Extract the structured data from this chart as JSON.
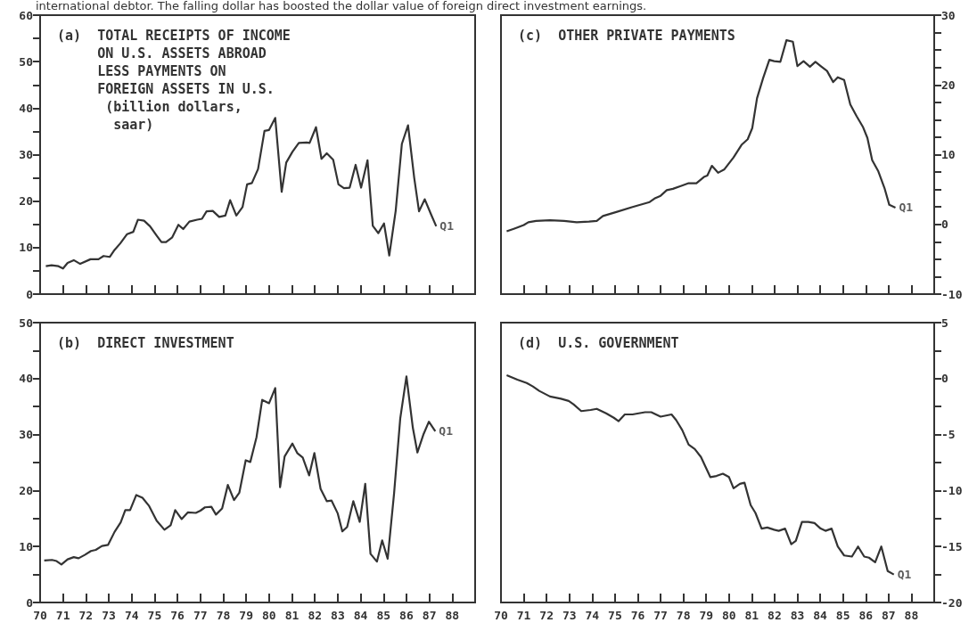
{
  "chart_data": [
    {
      "type": "line",
      "title": "(a)  TOTAL RECEIPTS OF INCOME\n     ON U.S. ASSETS ABROAD\n     LESS PAYMENTS ON\n     FOREIGN ASSETS IN U.S.\n      (billion dollars,\n       saar)",
      "tick_labels": "y",
      "xlim": [
        1970,
        1989
      ],
      "xticks": [
        {
          "value": 1970,
          "label": null
        },
        {
          "value": 1971,
          "label": null
        },
        {
          "value": 1972,
          "label": null
        },
        {
          "value": 1973,
          "label": null
        },
        {
          "value": 1974,
          "label": null
        },
        {
          "value": 1975,
          "label": null
        },
        {
          "value": 1976,
          "label": null
        },
        {
          "value": 1977,
          "label": null
        },
        {
          "value": 1978,
          "label": null
        },
        {
          "value": 1979,
          "label": null
        },
        {
          "value": 1980,
          "label": null
        },
        {
          "value": 1981,
          "label": null
        },
        {
          "value": 1982,
          "label": null
        },
        {
          "value": 1983,
          "label": null
        },
        {
          "value": 1984,
          "label": null
        },
        {
          "value": 1985,
          "label": null
        },
        {
          "value": 1986,
          "label": null
        },
        {
          "value": 1987,
          "label": null
        },
        {
          "value": 1988,
          "label": null
        },
        {
          "value": 1989,
          "label": null
        }
      ],
      "ylim": [
        0,
        60
      ],
      "yticks": [
        0,
        {
          "value": 5,
          "label": null
        },
        10,
        {
          "value": 15,
          "label": null
        },
        20,
        {
          "value": 25,
          "label": null
        },
        30,
        {
          "value": 35,
          "label": null
        },
        40,
        {
          "value": 45,
          "label": null
        },
        50,
        {
          "value": 55,
          "label": null
        },
        60
      ],
      "series": [
        {
          "color": "#333333",
          "x": [
            1970.25,
            1970.5,
            1970.8,
            1971.0,
            1971.2,
            1971.47,
            1971.75,
            1972.2,
            1972.55,
            1972.77,
            1973.04,
            1973.25,
            1973.5,
            1973.8,
            1974.07,
            1974.27,
            1974.54,
            1974.8,
            1975.09,
            1975.3,
            1975.5,
            1975.77,
            1976.04,
            1976.25,
            1976.52,
            1976.86,
            1977.07,
            1977.27,
            1977.54,
            1977.82,
            1978.09,
            1978.3,
            1978.57,
            1978.84,
            1979.04,
            1979.25,
            1979.52,
            1979.8,
            1980.0,
            1980.27,
            1980.55,
            1980.75,
            1981.02,
            1981.3,
            1981.64,
            1981.77,
            1982.05,
            1982.29,
            1982.52,
            1982.8,
            1983.03,
            1983.27,
            1983.52,
            1983.78,
            1984.02,
            1984.3,
            1984.53,
            1984.77,
            1985.02,
            1985.25,
            1985.53,
            1985.8,
            1986.07,
            1986.34,
            1986.55,
            1986.8,
            1987.07,
            1987.3
          ],
          "values": [
            6.0,
            6.2,
            6.0,
            5.5,
            6.7,
            7.3,
            6.5,
            7.5,
            7.5,
            8.2,
            8.0,
            9.5,
            10.9,
            12.9,
            13.4,
            16.0,
            15.8,
            14.6,
            12.6,
            11.2,
            11.2,
            12.2,
            14.9,
            14.0,
            15.6,
            16.0,
            16.2,
            17.8,
            17.9,
            16.6,
            16.9,
            20.2,
            16.9,
            18.7,
            23.6,
            23.9,
            26.9,
            35.1,
            35.3,
            37.9,
            22.0,
            28.3,
            30.6,
            32.5,
            32.6,
            32.5,
            35.9,
            29.1,
            30.3,
            28.9,
            23.6,
            22.8,
            22.9,
            27.8,
            22.9,
            28.8,
            14.7,
            13.1,
            15.2,
            8.3,
            17.9,
            32.3,
            36.3,
            25.0,
            17.8,
            20.4,
            17.2,
            14.6
          ]
        }
      ],
      "annotations": [
        "international debtor. The falling dollar has boosted the dollar value of foreign direct investment earnings.",
        {
          "text": "Q1",
          "x": 1987.3,
          "y": 14.6
        }
      ]
    },
    {
      "type": "line",
      "title": "(c)  OTHER PRIVATE PAYMENTS",
      "tick_labels": "y",
      "xlim": [
        1970,
        1989
      ],
      "xticks": [
        {
          "value": 1970,
          "label": null
        },
        {
          "value": 1971,
          "label": null
        },
        {
          "value": 1972,
          "label": null
        },
        {
          "value": 1973,
          "label": null
        },
        {
          "value": 1974,
          "label": null
        },
        {
          "value": 1975,
          "label": null
        },
        {
          "value": 1976,
          "label": null
        },
        {
          "value": 1977,
          "label": null
        },
        {
          "value": 1978,
          "label": null
        },
        {
          "value": 1979,
          "label": null
        },
        {
          "value": 1980,
          "label": null
        },
        {
          "value": 1981,
          "label": null
        },
        {
          "value": 1982,
          "label": null
        },
        {
          "value": 1983,
          "label": null
        },
        {
          "value": 1984,
          "label": null
        },
        {
          "value": 1985,
          "label": null
        },
        {
          "value": 1986,
          "label": null
        },
        {
          "value": 1987,
          "label": null
        },
        {
          "value": 1988,
          "label": null
        },
        {
          "value": 1989,
          "label": null
        }
      ],
      "ylim": [
        -10,
        30
      ],
      "yticks": [
        -10,
        {
          "value": -7.5,
          "label": null
        },
        {
          "value": -5,
          "label": null
        },
        {
          "value": -2.5,
          "label": null
        },
        0,
        {
          "value": 2.5,
          "label": null
        },
        {
          "value": 5,
          "label": null
        },
        {
          "value": 7.5,
          "label": null
        },
        10,
        {
          "value": 12.5,
          "label": null
        },
        {
          "value": 15,
          "label": null
        },
        {
          "value": 17.5,
          "label": null
        },
        20,
        {
          "value": 22.5,
          "label": null
        },
        {
          "value": 25,
          "label": null
        },
        {
          "value": 27.5,
          "label": null
        },
        30
      ],
      "series": [
        {
          "color": "#333333",
          "x": [
            1970.25,
            1970.59,
            1971.0,
            1971.2,
            1971.54,
            1972.15,
            1972.77,
            1973.32,
            1973.86,
            1974.2,
            1974.47,
            1975.09,
            1975.77,
            1976.52,
            1976.73,
            1977.0,
            1977.27,
            1977.54,
            1978.23,
            1978.57,
            1978.9,
            1979.05,
            1979.25,
            1979.52,
            1979.8,
            1980.2,
            1980.55,
            1980.82,
            1981.02,
            1981.23,
            1981.5,
            1981.77,
            1981.98,
            1982.25,
            1982.52,
            1982.8,
            1983.0,
            1983.27,
            1983.55,
            1983.79,
            1984.02,
            1984.3,
            1984.57,
            1984.77,
            1985.05,
            1985.32,
            1985.6,
            1985.87,
            1986.07,
            1986.28,
            1986.55,
            1986.82,
            1987.03,
            1987.3
          ],
          "values": [
            -1.0,
            -0.6,
            -0.1,
            0.3,
            0.5,
            0.6,
            0.5,
            0.3,
            0.4,
            0.5,
            1.2,
            1.8,
            2.5,
            3.2,
            3.7,
            4.1,
            4.9,
            5.1,
            5.9,
            5.9,
            6.8,
            7.0,
            8.4,
            7.4,
            7.9,
            9.6,
            11.4,
            12.2,
            13.8,
            18.1,
            21.0,
            23.6,
            23.4,
            23.3,
            26.4,
            26.2,
            22.7,
            23.4,
            22.6,
            23.3,
            22.7,
            22.0,
            20.4,
            21.1,
            20.7,
            17.2,
            15.5,
            14.0,
            12.4,
            9.2,
            7.6,
            5.2,
            2.8,
            2.4
          ]
        }
      ],
      "annotations": [
        {
          "text": "Q1",
          "x": 1987.3,
          "y": 2.4
        }
      ]
    },
    {
      "type": "line",
      "title": "(b)  DIRECT INVESTMENT",
      "xlim": [
        1970,
        1989
      ],
      "xticks": [
        {
          "value": 1970,
          "label": "70"
        },
        {
          "value": 1971,
          "label": "71"
        },
        {
          "value": 1972,
          "label": "72"
        },
        {
          "value": 1973,
          "label": "73"
        },
        {
          "value": 1974,
          "label": "74"
        },
        {
          "value": 1975,
          "label": "75"
        },
        {
          "value": 1976,
          "label": "76"
        },
        {
          "value": 1977,
          "label": "77"
        },
        {
          "value": 1978,
          "label": "78"
        },
        {
          "value": 1979,
          "label": "79"
        },
        {
          "value": 1980,
          "label": "80"
        },
        {
          "value": 1981,
          "label": "81"
        },
        {
          "value": 1982,
          "label": "82"
        },
        {
          "value": 1983,
          "label": "83"
        },
        {
          "value": 1984,
          "label": "84"
        },
        {
          "value": 1985,
          "label": "85"
        },
        {
          "value": 1986,
          "label": "86"
        },
        {
          "value": 1987,
          "label": "87"
        },
        {
          "value": 1988,
          "label": "88"
        },
        {
          "value": 1989,
          "label": null
        }
      ],
      "ylim": [
        0,
        50
      ],
      "yticks": [
        0,
        {
          "value": 5,
          "label": null
        },
        10,
        {
          "value": 15,
          "label": null
        },
        20,
        {
          "value": 25,
          "label": null
        },
        30,
        {
          "value": 35,
          "label": null
        },
        40,
        {
          "value": 45,
          "label": null
        },
        50
      ],
      "series": [
        {
          "color": "#333333",
          "x": [
            1970.18,
            1970.52,
            1970.72,
            1970.93,
            1971.2,
            1971.47,
            1971.68,
            1971.95,
            1972.22,
            1972.43,
            1972.7,
            1972.97,
            1973.25,
            1973.52,
            1973.72,
            1973.93,
            1974.2,
            1974.47,
            1974.75,
            1975.09,
            1975.43,
            1975.7,
            1975.9,
            1976.18,
            1976.45,
            1976.8,
            1977.0,
            1977.2,
            1977.48,
            1977.68,
            1977.95,
            1978.2,
            1978.47,
            1978.7,
            1978.98,
            1979.18,
            1979.45,
            1979.7,
            1980.0,
            1980.27,
            1980.48,
            1980.68,
            1981.02,
            1981.23,
            1981.47,
            1981.75,
            1981.98,
            1982.25,
            1982.52,
            1982.73,
            1983.0,
            1983.2,
            1983.41,
            1983.68,
            1983.96,
            1984.2,
            1984.43,
            1984.71,
            1984.94,
            1985.18,
            1985.46,
            1985.73,
            1986.0,
            1986.28,
            1986.48,
            1986.75,
            1986.98,
            1987.26
          ],
          "values": [
            7.5,
            7.6,
            7.4,
            6.8,
            7.7,
            8.1,
            7.9,
            8.5,
            9.2,
            9.4,
            10.1,
            10.3,
            12.6,
            14.3,
            16.5,
            16.5,
            19.2,
            18.7,
            17.3,
            14.6,
            13.0,
            13.8,
            16.5,
            14.9,
            16.1,
            16.0,
            16.4,
            17.0,
            17.1,
            15.7,
            16.8,
            21.0,
            18.3,
            19.6,
            25.4,
            25.1,
            29.5,
            36.2,
            35.6,
            38.3,
            20.6,
            26.1,
            28.4,
            26.7,
            25.9,
            22.7,
            26.7,
            20.3,
            18.1,
            18.2,
            15.9,
            12.7,
            13.5,
            18.1,
            14.4,
            21.2,
            8.7,
            7.3,
            11.1,
            7.8,
            19.5,
            32.9,
            40.4,
            31.2,
            26.8,
            30.1,
            32.3,
            30.6
          ]
        }
      ],
      "annotations": [
        {
          "text": "Q1",
          "x": 1987.26,
          "y": 30.6
        }
      ]
    },
    {
      "type": "line",
      "title": "(d)  U.S. GOVERNMENT",
      "xlim": [
        1970,
        1989
      ],
      "xticks": [
        {
          "value": 1970,
          "label": "70"
        },
        {
          "value": 1971,
          "label": "71"
        },
        {
          "value": 1972,
          "label": "72"
        },
        {
          "value": 1973,
          "label": "73"
        },
        {
          "value": 1974,
          "label": "74"
        },
        {
          "value": 1975,
          "label": "75"
        },
        {
          "value": 1976,
          "label": "76"
        },
        {
          "value": 1977,
          "label": "77"
        },
        {
          "value": 1978,
          "label": "78"
        },
        {
          "value": 1979,
          "label": "79"
        },
        {
          "value": 1980,
          "label": "80"
        },
        {
          "value": 1981,
          "label": "81"
        },
        {
          "value": 1982,
          "label": "82"
        },
        {
          "value": 1983,
          "label": "83"
        },
        {
          "value": 1984,
          "label": "84"
        },
        {
          "value": 1985,
          "label": "85"
        },
        {
          "value": 1986,
          "label": "86"
        },
        {
          "value": 1987,
          "label": "87"
        },
        {
          "value": 1988,
          "label": "88"
        },
        {
          "value": 1989,
          "label": null
        }
      ],
      "ylim": [
        -20,
        5
      ],
      "yticks": [
        -20,
        {
          "value": -17.5,
          "label": null
        },
        -15,
        {
          "value": -12.5,
          "label": null
        },
        -10,
        {
          "value": -7.5,
          "label": null
        },
        -5,
        {
          "value": -2.5,
          "label": null
        },
        0,
        {
          "value": 2.5,
          "label": null
        },
        5
      ],
      "series": [
        {
          "color": "#333333",
          "x": [
            1970.25,
            1970.72,
            1971.13,
            1971.4,
            1971.68,
            1972.15,
            1972.63,
            1972.97,
            1973.18,
            1973.52,
            1973.93,
            1974.2,
            1974.61,
            1974.95,
            1975.16,
            1975.43,
            1975.77,
            1976.04,
            1976.32,
            1976.59,
            1977.0,
            1977.48,
            1977.68,
            1977.95,
            1978.23,
            1978.5,
            1978.77,
            1979.18,
            1979.45,
            1979.73,
            1980.0,
            1980.2,
            1980.48,
            1980.68,
            1980.95,
            1981.16,
            1981.43,
            1981.68,
            1981.98,
            1982.18,
            1982.46,
            1982.73,
            1982.93,
            1983.2,
            1983.48,
            1983.75,
            1984.02,
            1984.23,
            1984.5,
            1984.77,
            1985.05,
            1985.39,
            1985.66,
            1985.93,
            1986.14,
            1986.41,
            1986.68,
            1986.96,
            1987.23
          ],
          "values": [
            0.3,
            -0.1,
            -0.4,
            -0.7,
            -1.1,
            -1.6,
            -1.8,
            -2.0,
            -2.3,
            -2.9,
            -2.8,
            -2.7,
            -3.1,
            -3.5,
            -3.8,
            -3.2,
            -3.2,
            -3.1,
            -3.0,
            -3.0,
            -3.4,
            -3.2,
            -3.7,
            -4.6,
            -5.9,
            -6.3,
            -7.0,
            -8.8,
            -8.7,
            -8.5,
            -8.8,
            -9.8,
            -9.4,
            -9.3,
            -11.3,
            -12.0,
            -13.4,
            -13.3,
            -13.5,
            -13.6,
            -13.4,
            -14.8,
            -14.5,
            -12.8,
            -12.8,
            -12.9,
            -13.4,
            -13.6,
            -13.4,
            -15.0,
            -15.8,
            -15.9,
            -15.0,
            -15.9,
            -16.0,
            -16.4,
            -15.0,
            -17.2,
            -17.5
          ]
        }
      ],
      "annotations": [
        {
          "text": "Q1",
          "x": 1987.23,
          "y": -17.5
        }
      ]
    }
  ]
}
